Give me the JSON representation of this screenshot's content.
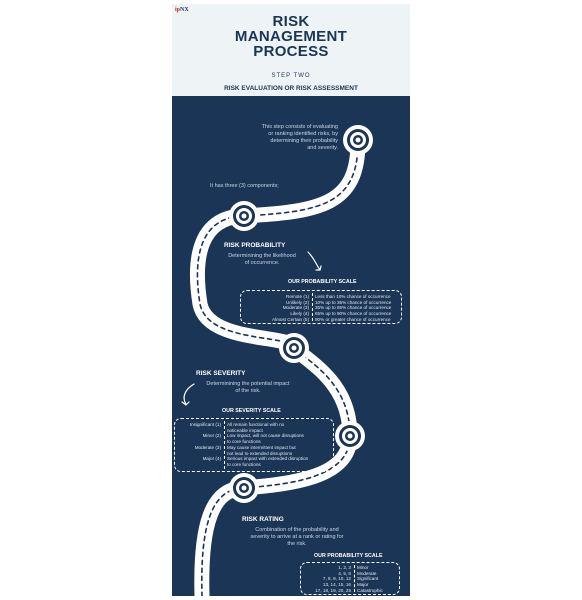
{
  "logo": {
    "prefix": "ip",
    "suffix": "NX"
  },
  "header": {
    "title_lines": [
      "RISK",
      "MANAGEMENT",
      "PROCESS"
    ],
    "step": "STEP TWO",
    "subtitle": "RISK EVALUATION OR RISK ASSESSMENT"
  },
  "intro": {
    "lines": [
      "This step consists of evaluating",
      "or ranking identified risks, by",
      "determining their probability",
      "and severity."
    ],
    "components": "It has three (3) components;"
  },
  "probability": {
    "heading": "RISK PROBABILITY",
    "desc_lines": [
      "Determinining the likelihood",
      "of occurrence."
    ],
    "scale_title": "OUR PROBABILITY SCALE",
    "levels": [
      "Remote (1)",
      "Unlikely (2)",
      "Moderate (3)",
      "Likely (4)",
      "Almost Certain (5)"
    ],
    "meanings": [
      "Less than 10% chance of occurrence",
      "10% up to 35% chance of occurrence",
      "35% up to 65% chance of occurrence",
      "65% up to 90% chance of occurrence",
      "90% or greater chance of occurrence"
    ]
  },
  "severity": {
    "heading": "RISK SEVERITY",
    "desc_lines": [
      "Determinining the potential impact",
      "of the risk."
    ],
    "scale_title": "OUR SEVERITY SCALE",
    "levels": [
      "Insignificant (1)",
      "",
      "Minor (2)",
      "",
      "Moderate (3)",
      "",
      "Major (4)",
      ""
    ],
    "meanings": [
      "All remain functional with no",
      "noticeable impact",
      "Low impact, will not cause disruptions",
      "to core functions",
      "May cause intermittent impact but",
      "not lead to extended disruptions",
      "Serious impact with extended disruption",
      "to core  functions"
    ]
  },
  "rating": {
    "heading": "RISK RATING",
    "desc_lines": [
      "Combination of the probability and",
      "severity to arrive at a rank or rating for",
      "the risk."
    ],
    "scale_title": "OUR PROBABILITY SCALE",
    "scores": [
      "1, 2, 3",
      "4, 5, 6",
      "7, 8, 9, 10, 12",
      "13, 14, 15, 16",
      "17, 18, 19, 20, 25"
    ],
    "labels": [
      "Minor",
      "Moderate",
      "Significant",
      "Major",
      "Catastrophic"
    ]
  },
  "colors": {
    "navy": "#1b3556",
    "header_bg": "#eef3f5",
    "road": "#ffffff",
    "logo_red": "#c62828"
  }
}
